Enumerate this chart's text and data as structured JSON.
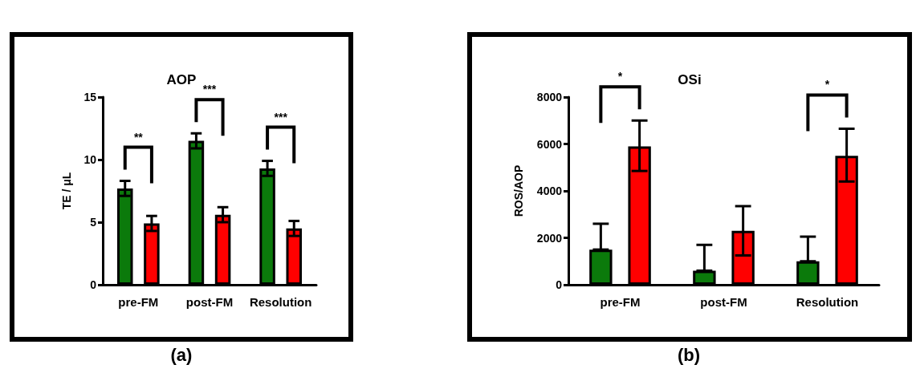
{
  "chart_data": [
    {
      "type": "bar",
      "title": "AOP",
      "ylabel": "TE / μL",
      "categories": [
        "pre-FM",
        "post-FM",
        "Resolution"
      ],
      "series": [
        {
          "color": "#0b7a0b",
          "values": [
            7.7,
            11.5,
            9.3
          ],
          "errors": [
            [
              7.1,
              8.3
            ],
            [
              10.9,
              12.1
            ],
            [
              8.7,
              9.9
            ]
          ]
        },
        {
          "color": "#ff0000",
          "values": [
            4.9,
            5.6,
            4.5
          ],
          "errors": [
            [
              4.3,
              5.5
            ],
            [
              5,
              6.2
            ],
            [
              3.9,
              5.1
            ]
          ]
        }
      ],
      "ylim": [
        0,
        15
      ],
      "yticks": [
        0,
        5,
        10,
        15
      ],
      "grid": false,
      "annotations": [
        "**",
        "***",
        "***",
        "(a)"
      ]
    },
    {
      "type": "bar",
      "title": "OSi",
      "ylabel": "ROS/AOP",
      "categories": [
        "pre-FM",
        "post-FM",
        "Resolution"
      ],
      "series": [
        {
          "color": "#0b7a0b",
          "values": [
            1500,
            600,
            1000
          ],
          "errors": [
            [
              1500,
              2600
            ],
            [
              600,
              1700
            ],
            [
              1000,
              2050
            ]
          ]
        },
        {
          "color": "#ff0000",
          "values": [
            5900,
            2300,
            5500
          ],
          "errors": [
            [
              4850,
              7000
            ],
            [
              1250,
              3350
            ],
            [
              4400,
              6650
            ]
          ]
        }
      ],
      "ylim": [
        0,
        8000
      ],
      "yticks": [
        0,
        2000,
        4000,
        6000,
        8000
      ],
      "grid": false,
      "annotations": [
        "*",
        "*",
        "(b)"
      ]
    }
  ]
}
